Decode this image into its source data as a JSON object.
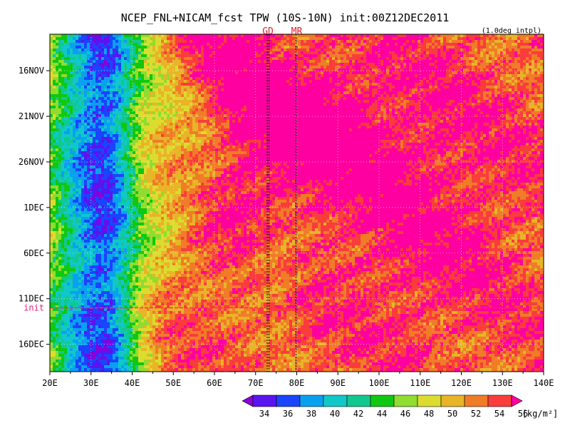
{
  "chart_data": {
    "type": "heatmap",
    "title": "NCEP_FNL+NICAM_fcst TPW (10S-10N) init:00Z12DEC2011",
    "subtitle": "(1.0deg intpl)",
    "x_ticks": [
      "20E",
      "30E",
      "40E",
      "50E",
      "60E",
      "70E",
      "80E",
      "90E",
      "100E",
      "110E",
      "120E",
      "130E",
      "140E"
    ],
    "x_tick_values": [
      20,
      30,
      40,
      50,
      60,
      70,
      80,
      90,
      100,
      110,
      120,
      130,
      140
    ],
    "xlim": [
      20,
      140
    ],
    "y_ticks": [
      "16NOV",
      "21NOV",
      "26NOV",
      "1DEC",
      "6DEC",
      "11DEC",
      "16DEC"
    ],
    "y_tick_dates": [
      "2011-11-16",
      "2011-11-21",
      "2011-11-26",
      "2011-12-01",
      "2011-12-06",
      "2011-12-11",
      "2011-12-16"
    ],
    "ylim": [
      "2011-11-12",
      "2011-12-19"
    ],
    "init_label": "init",
    "init_date": "2011-12-12",
    "markers": [
      {
        "label": "GD",
        "lon": 73
      },
      {
        "label": "MR",
        "lon": 80
      }
    ],
    "colorbar": {
      "levels": [
        34,
        36,
        38,
        40,
        42,
        44,
        46,
        48,
        50,
        52,
        54,
        56
      ],
      "labels": [
        "34",
        "36",
        "38",
        "40",
        "42",
        "44",
        "46",
        "48",
        "50",
        "52",
        "54",
        "56"
      ],
      "unit": "[kg/m²]",
      "colors": [
        "#8a00d8",
        "#5a14f0",
        "#1a44ff",
        "#0aa0f0",
        "#10c8c8",
        "#10c890",
        "#10c810",
        "#90dc30",
        "#dcdc30",
        "#e8b428",
        "#f07c28",
        "#fa3c3c",
        "#ff00a0"
      ]
    }
  }
}
